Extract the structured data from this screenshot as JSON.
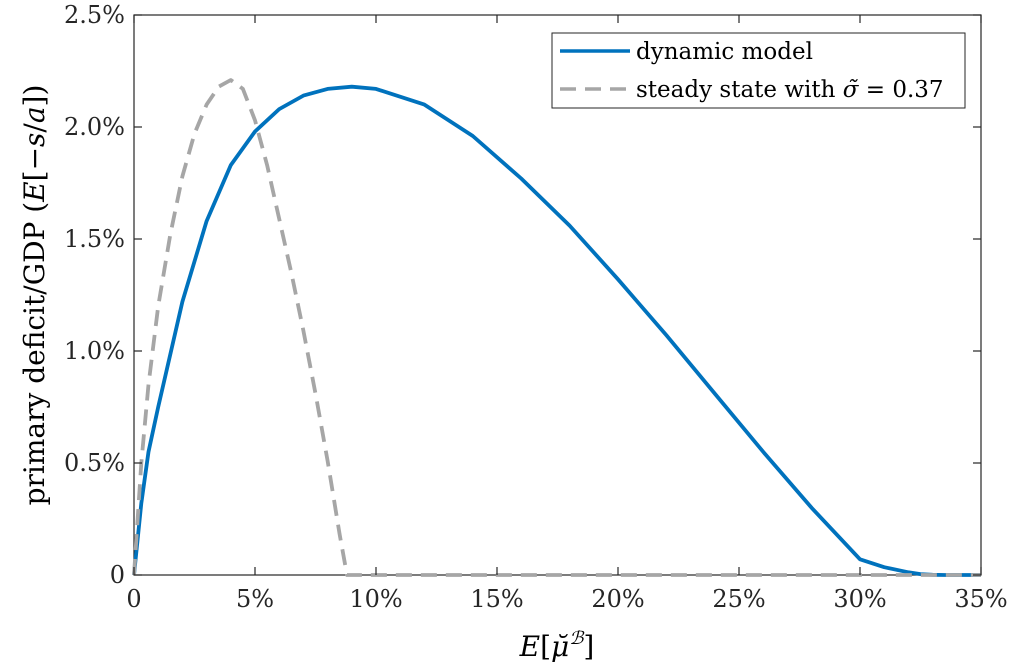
{
  "chart_data": {
    "type": "line",
    "xlabel": "E[μ̆ᴮ]",
    "ylabel": "primary deficit/GDP (E[−s/a])",
    "xlim": [
      0,
      35
    ],
    "ylim": [
      0,
      2.5
    ],
    "x_ticks": [
      0,
      5,
      10,
      15,
      20,
      25,
      30,
      35
    ],
    "x_tick_labels": [
      "0",
      "5%",
      "10%",
      "15%",
      "20%",
      "25%",
      "30%",
      "35%"
    ],
    "y_ticks": [
      0,
      0.5,
      1.0,
      1.5,
      2.0,
      2.5
    ],
    "y_tick_labels": [
      "0",
      "0.5%",
      "1.0%",
      "1.5%",
      "2.0%",
      "2.5%"
    ],
    "grid": false,
    "legend_position": "top-right",
    "series": [
      {
        "name": "dynamic model",
        "color": "#0072BD",
        "style": "solid",
        "x": [
          0,
          0.3,
          0.6,
          1,
          2,
          3,
          4,
          5,
          6,
          7,
          8,
          9,
          10,
          12,
          14,
          16,
          18,
          20,
          22,
          24,
          26,
          28,
          30,
          31,
          32,
          32.5,
          33,
          33.5,
          34,
          35
        ],
        "y": [
          0,
          0.32,
          0.55,
          0.75,
          1.22,
          1.58,
          1.83,
          1.98,
          2.08,
          2.14,
          2.17,
          2.18,
          2.17,
          2.1,
          1.96,
          1.77,
          1.56,
          1.32,
          1.07,
          0.81,
          0.55,
          0.3,
          0.07,
          0.035,
          0.012,
          0.004,
          0.001,
          0,
          0,
          0
        ]
      },
      {
        "name": "steady state with σ̃ = 0.37",
        "color": "#A6A6A6",
        "style": "dashed",
        "x": [
          0,
          0.3,
          0.6,
          1,
          1.5,
          2,
          2.5,
          3,
          3.5,
          4,
          4.5,
          5,
          5.5,
          6,
          6.5,
          7,
          7.5,
          8,
          8.5,
          8.8,
          9,
          35
        ],
        "y": [
          0,
          0.5,
          0.85,
          1.2,
          1.52,
          1.78,
          1.97,
          2.1,
          2.18,
          2.21,
          2.17,
          2.03,
          1.83,
          1.59,
          1.35,
          1.09,
          0.81,
          0.51,
          0.18,
          0,
          0,
          0
        ]
      }
    ]
  }
}
